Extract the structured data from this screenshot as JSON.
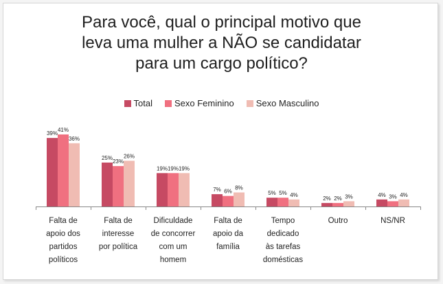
{
  "colors": {
    "total": "#c64a63",
    "feminino": "#f07080",
    "masculino": "#f0bcb3",
    "axis": "#888888",
    "text": "#222222"
  },
  "chart_data": {
    "type": "bar",
    "title_lines": [
      "Para você, qual o principal motivo que",
      "leva uma mulher a NÃO se candidatar",
      "para um cargo político?"
    ],
    "legend": [
      "Total",
      "Sexo Feminino",
      "Sexo Masculino"
    ],
    "categories": [
      [
        "Falta de",
        "apoio dos",
        "partidos",
        "políticos"
      ],
      [
        "Falta de",
        "interesse",
        "por política"
      ],
      [
        "Dificuldade",
        "de concorrer",
        "com um",
        "homem"
      ],
      [
        "Falta de",
        "apoio da",
        "família"
      ],
      [
        "Tempo",
        "dedicado",
        "às tarefas",
        "domésticas"
      ],
      [
        "Outro"
      ],
      [
        "NS/NR"
      ]
    ],
    "series": [
      {
        "name": "Total",
        "values": [
          39,
          25,
          19,
          7,
          5,
          2,
          4
        ],
        "labels": [
          "39%",
          "25%",
          "19%",
          "7%",
          "5%",
          "2%",
          "4%"
        ]
      },
      {
        "name": "Sexo Feminino",
        "values": [
          41,
          23,
          19,
          6,
          5,
          2,
          3
        ],
        "labels": [
          "41%",
          "23%",
          "19%",
          "6%",
          "5%",
          "2%",
          "3%"
        ]
      },
      {
        "name": "Sexo Masculino",
        "values": [
          36,
          26,
          19,
          8,
          4,
          3,
          4
        ],
        "labels": [
          "36%",
          "26%",
          "19%",
          "8%",
          "4%",
          "3%",
          "4%"
        ]
      }
    ],
    "ylim": [
      0,
      41
    ],
    "grid": false,
    "legend_position": "top-center"
  }
}
